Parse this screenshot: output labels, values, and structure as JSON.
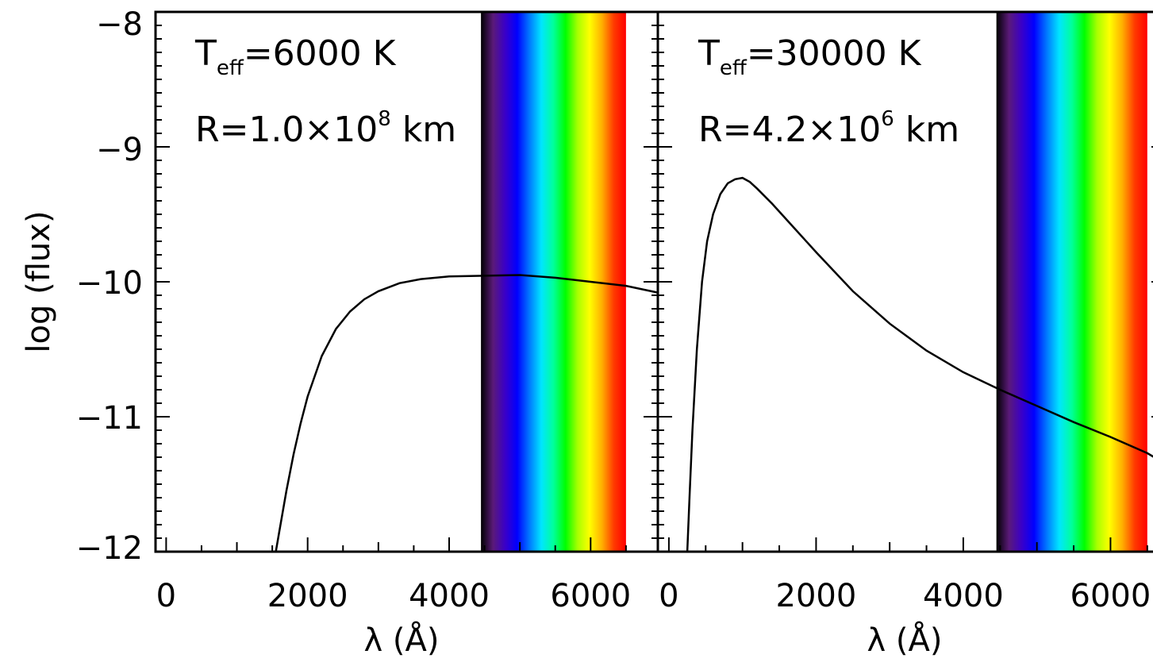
{
  "chart_data": {
    "type": "line",
    "ylabel": "log (flux)",
    "shared_yticks": [
      "−8",
      "−9",
      "−10",
      "−11",
      "−12"
    ],
    "ylim": [
      -12,
      -8
    ],
    "visible_band": {
      "start": 4450,
      "end": 6500,
      "colors": [
        "#000000",
        "#5a1a78",
        "#3a00c8",
        "#0000ff",
        "#0078ff",
        "#00e6ff",
        "#00ff9a",
        "#00ff00",
        "#a8ff00",
        "#ffff00",
        "#ffb000",
        "#ff3a00",
        "#ff0000"
      ]
    },
    "panels": [
      {
        "xlabel": "λ (Å)",
        "xlim": [
          -150,
          6950
        ],
        "xticks": [
          {
            "value": 0,
            "label": "0"
          },
          {
            "value": 2000,
            "label": "2000"
          },
          {
            "value": 4000,
            "label": "4000"
          },
          {
            "value": 6000,
            "label": "6000"
          }
        ],
        "annotation": {
          "teff_main": "T",
          "teff_sub": "eff",
          "teff_rest": "=6000 K",
          "r_main": "R=1.0×10",
          "r_sup": "8",
          "r_unit": " km"
        },
        "series": [
          {
            "x": [
              1550,
              1600,
              1700,
              1800,
              1900,
              2000,
              2200,
              2400,
              2600,
              2800,
              3000,
              3300,
              3600,
              4000,
              4500,
              5000,
              5500,
              6000,
              6500,
              6950
            ],
            "y": [
              -12.0,
              -11.85,
              -11.55,
              -11.28,
              -11.05,
              -10.85,
              -10.55,
              -10.35,
              -10.22,
              -10.13,
              -10.07,
              -10.01,
              -9.98,
              -9.96,
              -9.955,
              -9.95,
              -9.97,
              -10.0,
              -10.03,
              -10.08
            ]
          }
        ]
      },
      {
        "xlabel": "λ (Å)",
        "xlim": [
          -150,
          6750
        ],
        "xticks": [
          {
            "value": 0,
            "label": "0"
          },
          {
            "value": 2000,
            "label": "2000"
          },
          {
            "value": 4000,
            "label": "4000"
          },
          {
            "value": 6000,
            "label": "6000"
          }
        ],
        "annotation": {
          "teff_main": "T",
          "teff_sub": "eff",
          "teff_rest": "=30000 K",
          "r_main": "R=4.2×10",
          "r_sup": "6",
          "r_unit": " km"
        },
        "series": [
          {
            "x": [
              250,
              280,
              320,
              380,
              450,
              520,
              600,
              700,
              800,
              900,
              1000,
              1100,
              1200,
              1400,
              1700,
              2000,
              2500,
              3000,
              3500,
              4000,
              4500,
              5000,
              5500,
              6000,
              6500,
              6750
            ],
            "y": [
              -12.0,
              -11.6,
              -11.1,
              -10.5,
              -10.0,
              -9.7,
              -9.5,
              -9.35,
              -9.27,
              -9.24,
              -9.23,
              -9.26,
              -9.31,
              -9.42,
              -9.6,
              -9.78,
              -10.07,
              -10.31,
              -10.51,
              -10.67,
              -10.8,
              -10.92,
              -11.04,
              -11.15,
              -11.27,
              -11.35
            ]
          }
        ]
      }
    ]
  }
}
